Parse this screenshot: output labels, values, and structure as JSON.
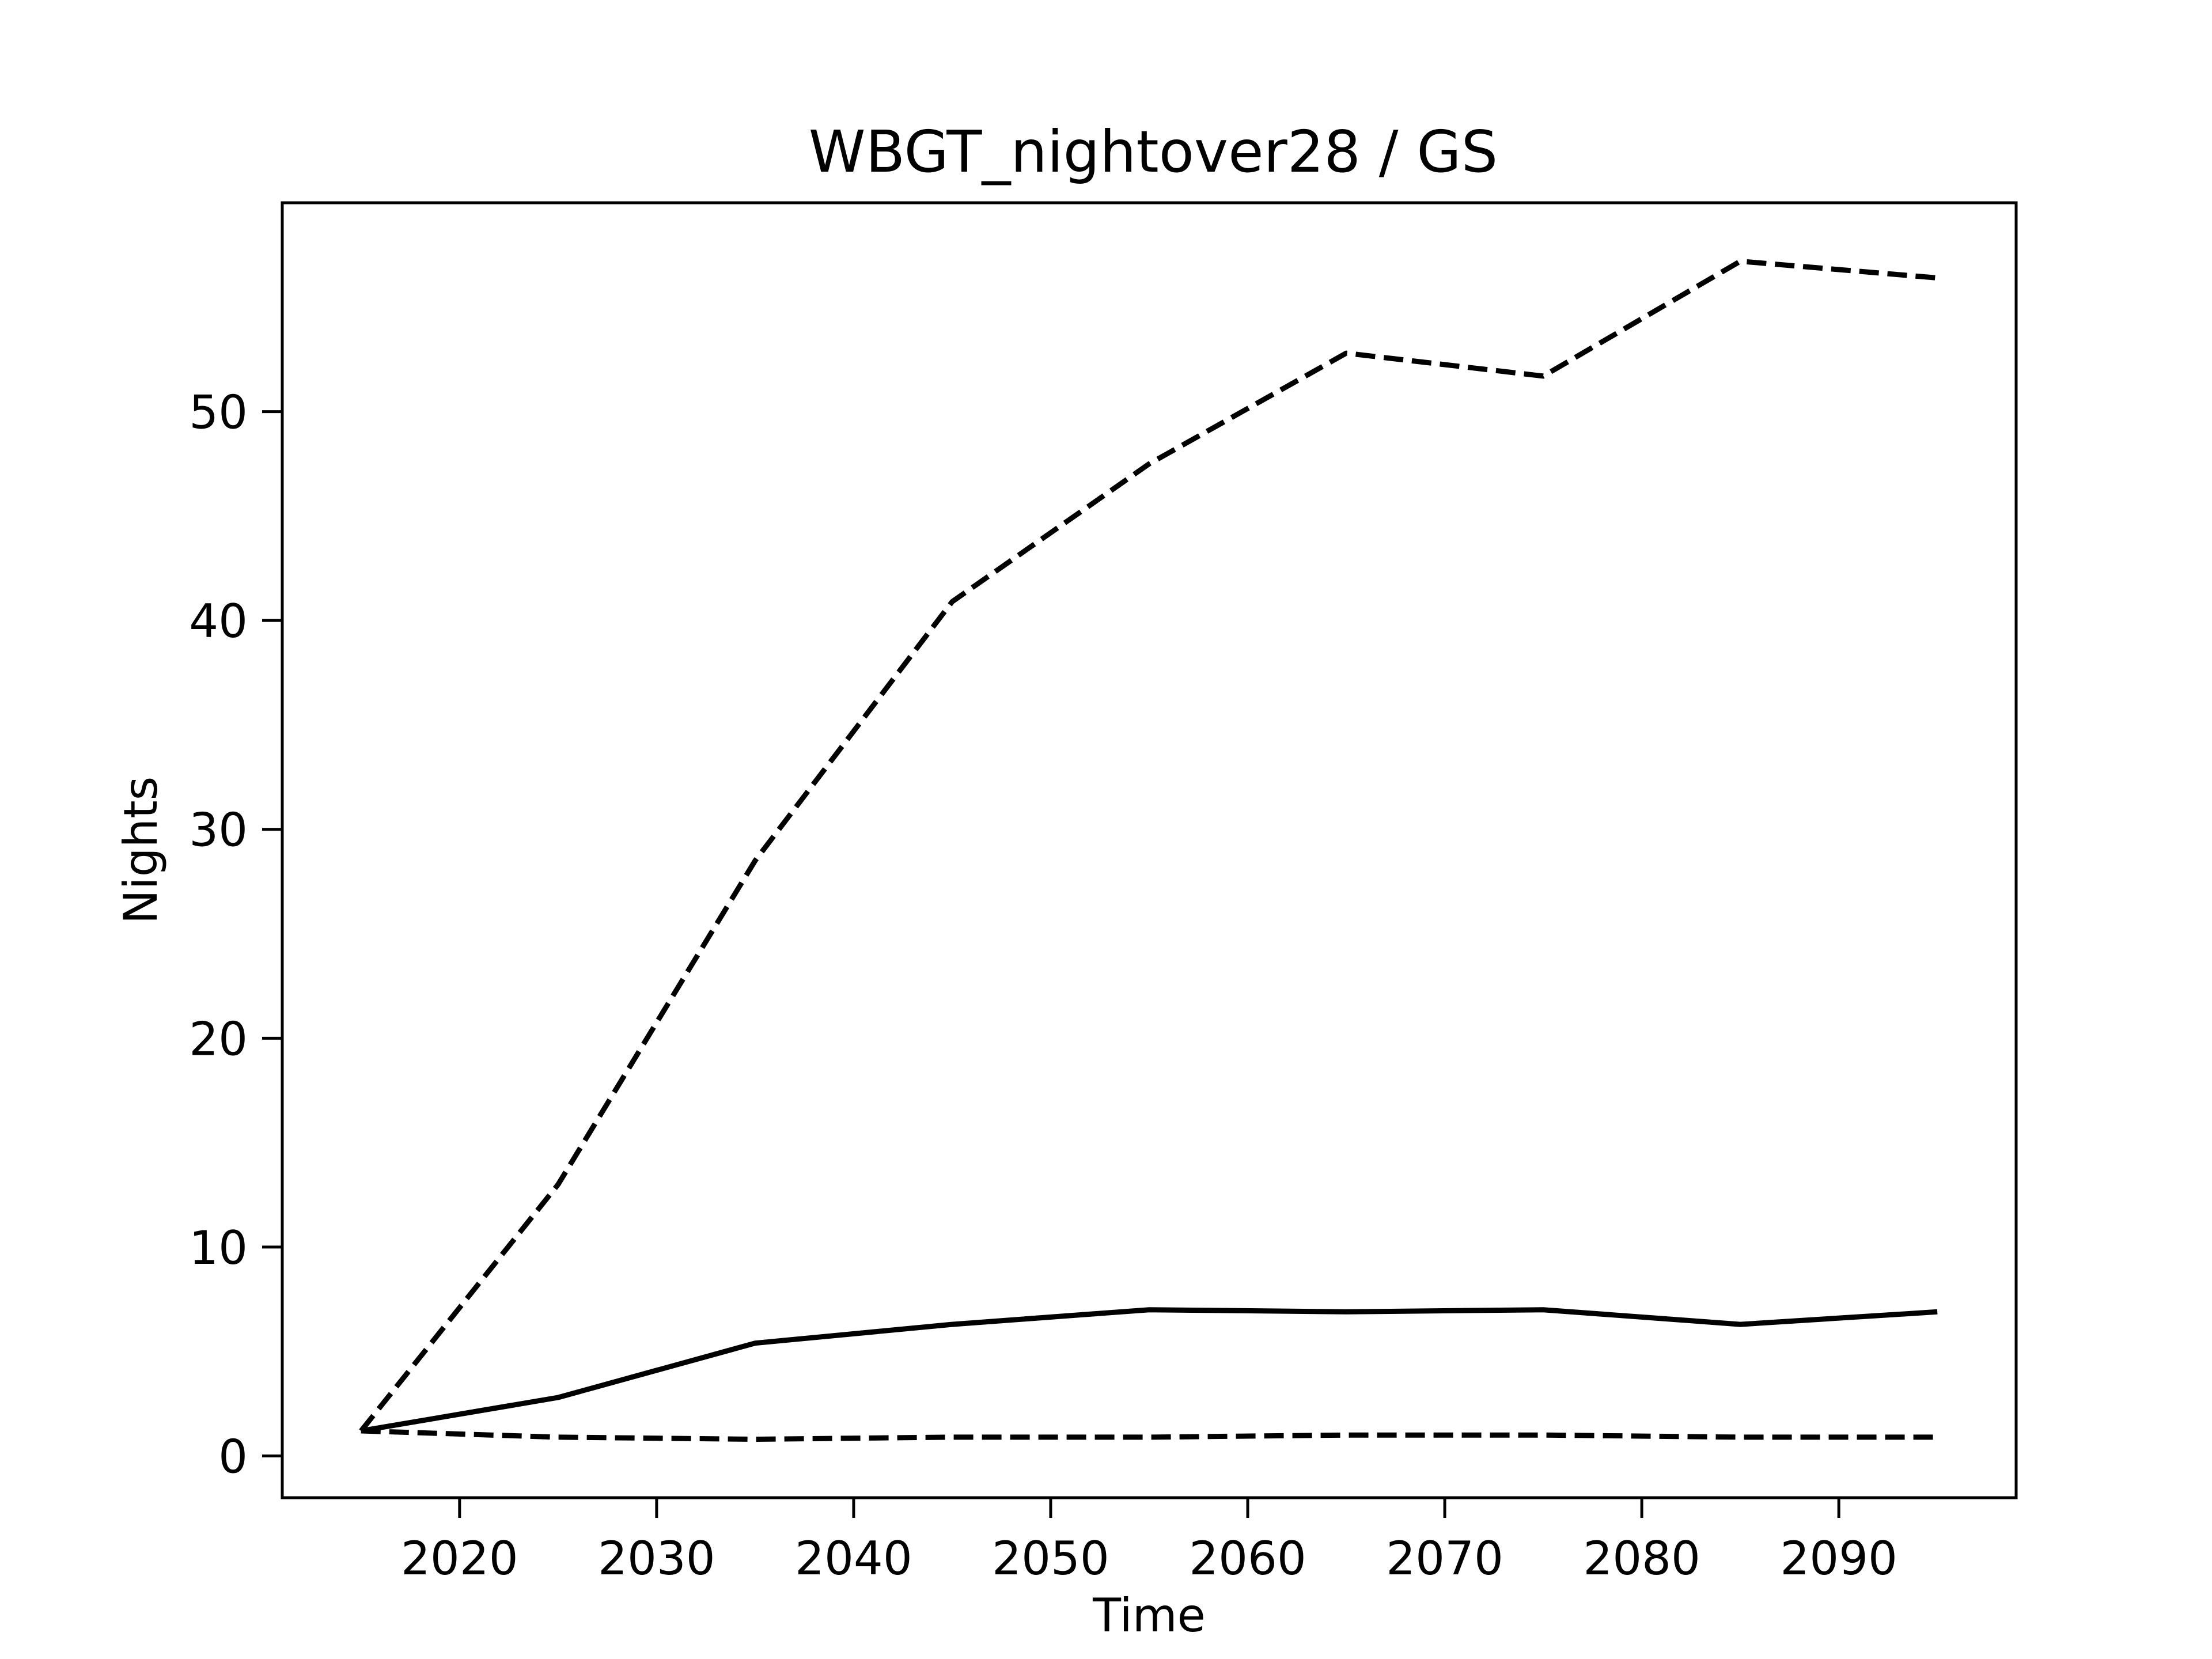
{
  "chart_data": {
    "type": "line",
    "title": "WBGT_nightover28 / GS",
    "xlabel": "Time",
    "ylabel": "Nights",
    "xlim": [
      2011,
      2099
    ],
    "ylim": [
      -2,
      60
    ],
    "xticks": [
      2020,
      2030,
      2040,
      2050,
      2060,
      2070,
      2080,
      2090
    ],
    "yticks": [
      0,
      10,
      20,
      30,
      40,
      50
    ],
    "grid": false,
    "x": [
      2015,
      2025,
      2035,
      2045,
      2055,
      2065,
      2075,
      2085,
      2095
    ],
    "series": [
      {
        "style": "dashed",
        "color": "#000000",
        "values": [
          1.2,
          13.0,
          28.5,
          40.9,
          47.5,
          52.8,
          51.7,
          57.2,
          56.4
        ]
      },
      {
        "style": "solid",
        "color": "#000000",
        "values": [
          1.2,
          2.8,
          5.4,
          6.3,
          7.0,
          6.9,
          7.0,
          6.3,
          6.9
        ]
      },
      {
        "style": "dashed",
        "color": "#000000",
        "values": [
          1.2,
          0.9,
          0.8,
          0.9,
          0.9,
          1.0,
          1.0,
          0.9,
          0.9
        ]
      }
    ]
  }
}
